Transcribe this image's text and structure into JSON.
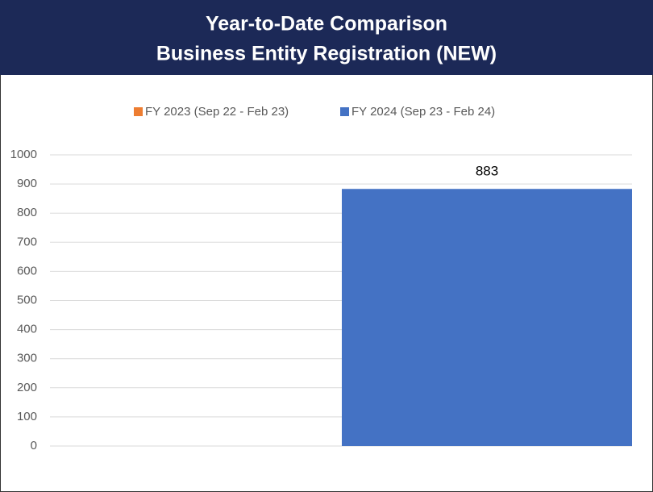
{
  "chart_data": {
    "type": "bar",
    "title": "Year-to-Date Comparison",
    "subtitle": "Business Entity Registration (NEW)",
    "categories": [
      null
    ],
    "series": [
      {
        "name": "FY 2023 (Sep 22 - Feb 23)",
        "color": "#ed7d31",
        "values": [
          null
        ]
      },
      {
        "name": "FY 2024 (Sep 23 - Feb 24)",
        "color": "#4472c4",
        "values": [
          883
        ]
      }
    ],
    "ylim": [
      0,
      1000
    ],
    "yticks": [
      0,
      100,
      200,
      300,
      400,
      500,
      600,
      700,
      800,
      900,
      1000
    ],
    "grid": true,
    "legend": "top"
  }
}
